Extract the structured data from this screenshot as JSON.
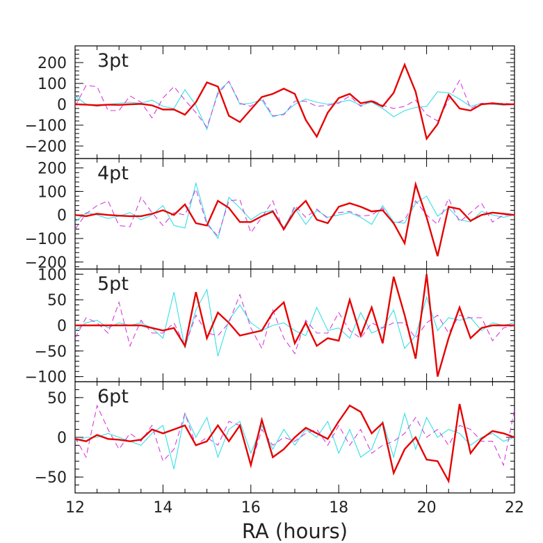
{
  "chart_data": {
    "type": "line",
    "xlabel": "RA (hours)",
    "xlim": [
      12,
      22
    ],
    "x_ticks": [
      12,
      14,
      16,
      18,
      20,
      22
    ],
    "x_minor_step": 0.5,
    "colors": {
      "cyan": "#33e0e6",
      "magenta": "#d63adb",
      "red": "#e60000"
    },
    "panels": [
      {
        "label": "3pt",
        "ylim": [
          -260,
          280
        ],
        "y_ticks": [
          -200,
          -100,
          0,
          100,
          200
        ],
        "y_tick_labels": [
          "−200",
          "−100",
          "0",
          "100",
          "200"
        ],
        "y_minor_step": 20,
        "x": [
          12,
          12.25,
          12.5,
          12.75,
          13,
          13.25,
          13.5,
          13.75,
          14,
          14.25,
          14.5,
          14.75,
          15,
          15.25,
          15.5,
          15.75,
          16,
          16.25,
          16.5,
          16.75,
          17,
          17.25,
          17.5,
          17.75,
          18,
          18.25,
          18.5,
          18.75,
          19,
          19.25,
          19.5,
          19.75,
          20,
          20.25,
          20.5,
          20.75,
          21,
          21.25,
          21.5,
          21.75,
          22
        ],
        "series": [
          {
            "style": "cyan",
            "values": [
              40,
              0,
              -10,
              0,
              5,
              10,
              5,
              20,
              -10,
              -20,
              70,
              -5,
              -120,
              60,
              110,
              0,
              5,
              20,
              -60,
              -45,
              0,
              25,
              10,
              0,
              10,
              20,
              -5,
              10,
              -20,
              -60,
              -30,
              -15,
              -10,
              60,
              55,
              25,
              -10,
              5,
              0,
              -5,
              0
            ]
          },
          {
            "style": "magenta",
            "values": [
              -10,
              90,
              85,
              -30,
              -30,
              40,
              10,
              -65,
              30,
              85,
              20,
              -40,
              -110,
              50,
              110,
              5,
              -10,
              30,
              -55,
              -50,
              15,
              15,
              -10,
              -5,
              5,
              40,
              -10,
              20,
              -5,
              -20,
              -10,
              20,
              -50,
              -80,
              20,
              115,
              -20,
              5,
              0,
              5,
              0
            ]
          },
          {
            "style": "red",
            "values": [
              0,
              -2,
              -5,
              -2,
              -3,
              0,
              2,
              -5,
              -25,
              -25,
              -50,
              10,
              105,
              85,
              -55,
              -85,
              -25,
              35,
              50,
              75,
              50,
              -75,
              -155,
              -40,
              30,
              50,
              5,
              15,
              -10,
              55,
              190,
              60,
              -165,
              -95,
              45,
              -20,
              -30,
              0,
              5,
              0,
              0
            ]
          }
        ]
      },
      {
        "label": "4pt",
        "ylim": [
          -230,
          240
        ],
        "y_ticks": [
          -200,
          -100,
          0,
          100,
          200
        ],
        "y_tick_labels": [
          "−200",
          "−100",
          "0",
          "100",
          "200"
        ],
        "y_minor_step": 20,
        "x": [
          12,
          12.25,
          12.5,
          12.75,
          13,
          13.25,
          13.5,
          13.75,
          14,
          14.25,
          14.5,
          14.75,
          15,
          15.25,
          15.5,
          15.75,
          16,
          16.25,
          16.5,
          16.75,
          17,
          17.25,
          17.5,
          17.75,
          18,
          18.25,
          18.5,
          18.75,
          19,
          19.25,
          19.5,
          19.75,
          20,
          20.25,
          20.5,
          20.75,
          21,
          21.25,
          21.5,
          21.75,
          22
        ],
        "series": [
          {
            "style": "cyan",
            "values": [
              -30,
              10,
              0,
              -15,
              -5,
              10,
              -20,
              0,
              40,
              -45,
              -55,
              135,
              -30,
              -100,
              75,
              30,
              -20,
              10,
              20,
              -55,
              30,
              -40,
              20,
              -10,
              0,
              10,
              -10,
              -40,
              40,
              -30,
              -35,
              50,
              80,
              -5,
              30,
              -20,
              -30,
              15,
              0,
              -10,
              0
            ]
          },
          {
            "style": "magenta",
            "values": [
              -60,
              5,
              40,
              60,
              -45,
              -50,
              75,
              10,
              -45,
              10,
              0,
              110,
              -40,
              -90,
              60,
              65,
              -75,
              -10,
              60,
              -70,
              40,
              -10,
              25,
              -15,
              10,
              15,
              -5,
              0,
              30,
              -40,
              -20,
              60,
              0,
              -40,
              70,
              -30,
              10,
              50,
              -30,
              0,
              0
            ]
          },
          {
            "style": "red",
            "values": [
              0,
              -5,
              5,
              0,
              -3,
              -5,
              -5,
              5,
              20,
              0,
              45,
              -35,
              -45,
              60,
              30,
              -30,
              -30,
              -5,
              15,
              -60,
              15,
              60,
              -20,
              -35,
              35,
              50,
              35,
              15,
              20,
              -35,
              -120,
              130,
              -10,
              -175,
              35,
              25,
              -25,
              0,
              10,
              5,
              0
            ]
          }
        ]
      },
      {
        "label": "5pt",
        "ylim": [
          -110,
          110
        ],
        "y_ticks": [
          -100,
          -50,
          0,
          50,
          100
        ],
        "y_tick_labels": [
          "−100",
          "−50",
          "0",
          "50",
          "100"
        ],
        "y_minor_step": 10,
        "x": [
          12,
          12.25,
          12.5,
          12.75,
          13,
          13.25,
          13.5,
          13.75,
          14,
          14.25,
          14.5,
          14.75,
          15,
          15.25,
          15.5,
          15.75,
          16,
          16.25,
          16.5,
          16.75,
          17,
          17.25,
          17.5,
          17.75,
          18,
          18.25,
          18.5,
          18.75,
          19,
          19.25,
          19.5,
          19.75,
          20,
          20.25,
          20.5,
          20.75,
          21,
          21.25,
          21.5,
          21.75,
          22
        ],
        "series": [
          {
            "style": "cyan",
            "values": [
              -10,
              5,
              10,
              -5,
              5,
              0,
              5,
              -5,
              -25,
              65,
              -45,
              30,
              70,
              -60,
              10,
              40,
              5,
              -10,
              0,
              5,
              -10,
              -20,
              35,
              -10,
              -5,
              -25,
              25,
              -15,
              -5,
              30,
              -45,
              -20,
              55,
              -10,
              15,
              10,
              15,
              -10,
              5,
              0,
              5
            ]
          },
          {
            "style": "magenta",
            "values": [
              -25,
              15,
              5,
              -15,
              45,
              -40,
              10,
              -15,
              -15,
              5,
              -40,
              20,
              -15,
              -20,
              5,
              60,
              -5,
              -45,
              30,
              -25,
              -55,
              10,
              -15,
              -15,
              25,
              -10,
              -25,
              5,
              -5,
              5,
              5,
              -25,
              5,
              20,
              -15,
              20,
              15,
              15,
              -30,
              -5,
              0
            ]
          },
          {
            "style": "red",
            "values": [
              0,
              0,
              0,
              0,
              0,
              0,
              0,
              -5,
              -10,
              -5,
              -40,
              65,
              -25,
              25,
              5,
              -20,
              -15,
              -10,
              25,
              45,
              -35,
              5,
              -40,
              -25,
              -30,
              50,
              -20,
              35,
              -35,
              95,
              20,
              -65,
              100,
              -100,
              -25,
              35,
              -25,
              -5,
              0,
              0,
              0
            ]
          }
        ]
      },
      {
        "label": "6pt",
        "ylim": [
          -70,
          70
        ],
        "y_ticks": [
          -50,
          0,
          50
        ],
        "y_tick_labels": [
          "−50",
          "0",
          "50"
        ],
        "y_minor_step": 10,
        "x": [
          12,
          12.25,
          12.5,
          12.75,
          13,
          13.25,
          13.5,
          13.75,
          14,
          14.25,
          14.5,
          14.75,
          15,
          15.25,
          15.5,
          15.75,
          16,
          16.25,
          16.5,
          16.75,
          17,
          17.25,
          17.5,
          17.75,
          18,
          18.25,
          18.5,
          18.75,
          19,
          19.25,
          19.5,
          19.75,
          20,
          20.25,
          20.5,
          20.75,
          21,
          21.25,
          21.5,
          21.75,
          22
        ],
        "series": [
          {
            "style": "cyan",
            "values": [
              -5,
              0,
              0,
              5,
              0,
              -5,
              -10,
              5,
              15,
              -40,
              30,
              0,
              25,
              -25,
              10,
              20,
              -20,
              15,
              -15,
              10,
              -10,
              10,
              0,
              20,
              -20,
              10,
              -25,
              -15,
              20,
              -25,
              30,
              -15,
              25,
              0,
              10,
              5,
              -10,
              0,
              5,
              -5,
              0
            ]
          },
          {
            "style": "magenta",
            "values": [
              0,
              -25,
              40,
              10,
              -15,
              5,
              -5,
              15,
              -30,
              -15,
              30,
              -10,
              0,
              -10,
              20,
              15,
              -35,
              10,
              -10,
              0,
              -5,
              5,
              10,
              -10,
              15,
              -10,
              10,
              -20,
              -10,
              -5,
              5,
              25,
              0,
              10,
              -10,
              15,
              10,
              -5,
              -5,
              -35,
              35
            ]
          },
          {
            "style": "red",
            "values": [
              -2,
              -5,
              3,
              -2,
              -3,
              -5,
              -3,
              10,
              5,
              10,
              15,
              -10,
              -5,
              15,
              -5,
              15,
              -35,
              22,
              -25,
              -15,
              0,
              12,
              5,
              -2,
              20,
              40,
              32,
              5,
              18,
              -45,
              -15,
              0,
              -28,
              -30,
              -55,
              42,
              -20,
              -2,
              8,
              5,
              0
            ]
          }
        ]
      }
    ]
  }
}
